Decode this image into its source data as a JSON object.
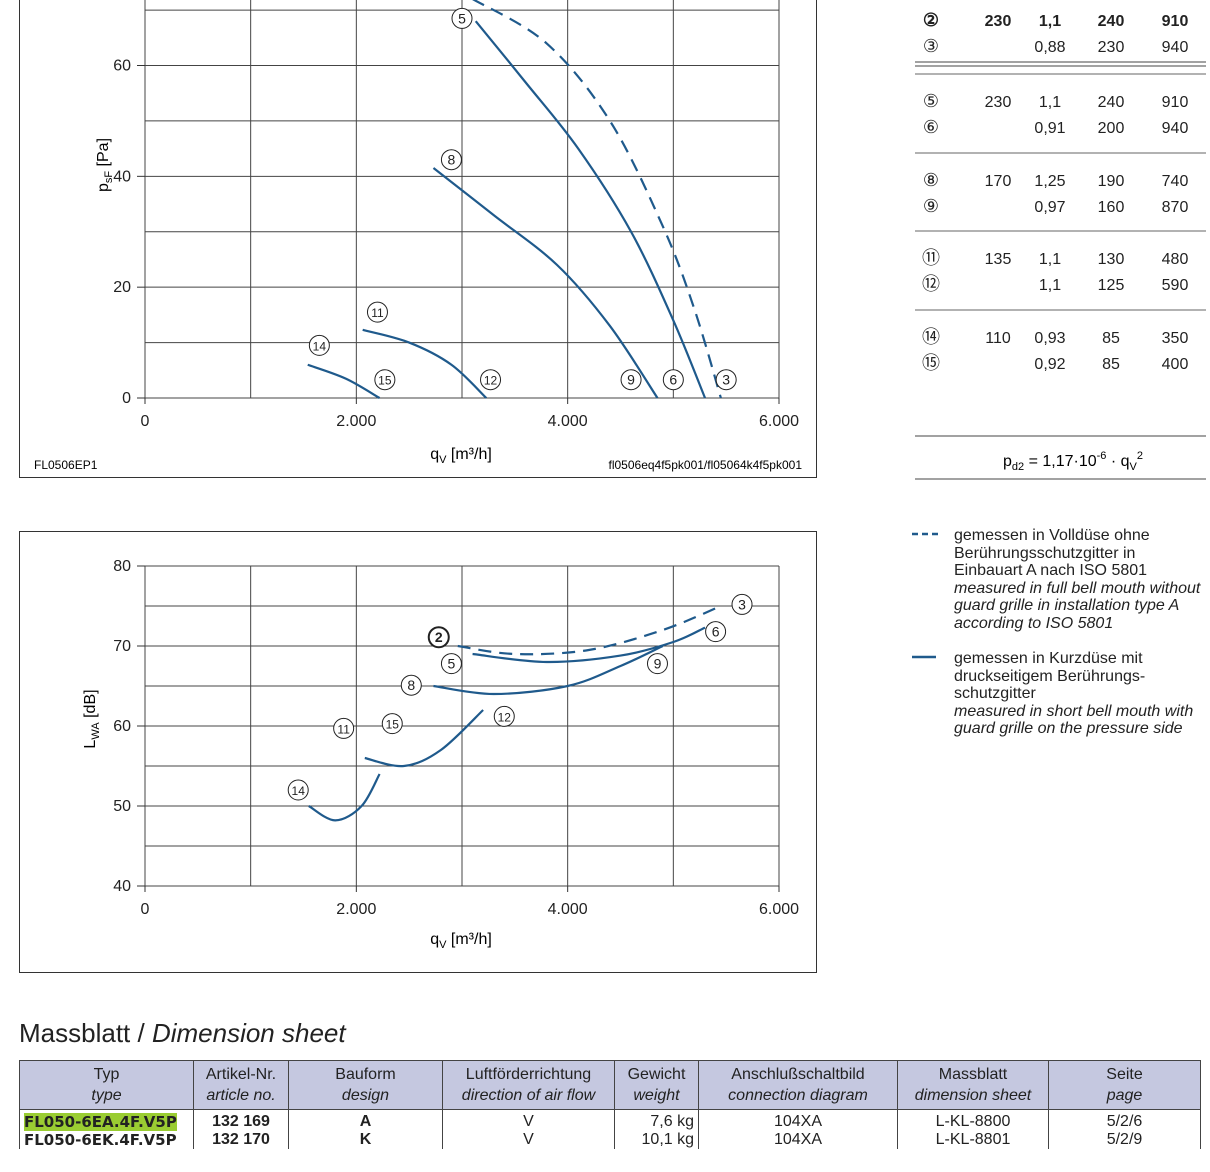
{
  "pressure_chart": {
    "ylabel_main": "p",
    "ylabel_sub": "sF",
    "ylabel_unit": " [Pa]",
    "xlabel_main": "q",
    "xlabel_sub": "V",
    "xlabel_unit": " [m³/h]",
    "code_left": "FL0506EP1",
    "code_right": "fl0506eq4f5pk001/fl05064k4f5pk001"
  },
  "sound_chart": {
    "ylabel_main": "L",
    "ylabel_sub": "WA",
    "ylabel_unit": " [dB]",
    "xlabel_main": "q",
    "xlabel_sub": "V",
    "xlabel_unit": " [m³/h]"
  },
  "chart_data": [
    {
      "type": "line",
      "xlim": [
        0,
        6000
      ],
      "ylim": [
        0,
        72
      ],
      "x_ticks": [
        0,
        2000,
        4000,
        6000
      ],
      "x_tick_labels": [
        "0",
        "2.000",
        "4.000",
        "6.000"
      ],
      "y_ticks": [
        0,
        20,
        40,
        60
      ],
      "y_tick_labels": [
        "0",
        "20",
        "40",
        "60"
      ],
      "grid": true,
      "series": [
        {
          "label": "3",
          "style": "dashed",
          "x": [
            3100,
            3800,
            4400,
            4900,
            5200,
            5450
          ],
          "y": [
            72,
            64,
            50,
            31,
            16,
            0
          ]
        },
        {
          "label": "6",
          "style": "solid",
          "x": [
            3130,
            3600,
            4100,
            4600,
            5000,
            5300
          ],
          "y": [
            68,
            57,
            45,
            30,
            14,
            0
          ]
        },
        {
          "label": "9",
          "style": "solid",
          "x": [
            2730,
            3300,
            3900,
            4400,
            4850
          ],
          "y": [
            41.5,
            33,
            24,
            13,
            0
          ]
        },
        {
          "label": "12",
          "style": "solid",
          "x": [
            2060,
            2500,
            2900,
            3230
          ],
          "y": [
            12.3,
            10,
            6,
            0
          ]
        },
        {
          "label": "15",
          "style": "solid",
          "x": [
            1540,
            1900,
            2220
          ],
          "y": [
            6,
            3.5,
            0
          ]
        }
      ],
      "annotations": [
        "5",
        "8",
        "11",
        "14",
        "15",
        "12",
        "9",
        "6",
        "3"
      ]
    },
    {
      "type": "line",
      "xlim": [
        0,
        6000
      ],
      "ylim": [
        40,
        80
      ],
      "x_ticks": [
        0,
        2000,
        4000,
        6000
      ],
      "x_tick_labels": [
        "0",
        "2.000",
        "4.000",
        "6.000"
      ],
      "y_ticks": [
        40,
        50,
        60,
        70,
        80
      ],
      "y_tick_labels": [
        "40",
        "50",
        "60",
        "70",
        "80"
      ],
      "grid": true,
      "series": [
        {
          "label": "3",
          "style": "dashed",
          "x": [
            2960,
            3500,
            4200,
            4900,
            5450
          ],
          "y": [
            70,
            69,
            69.5,
            72,
            75
          ]
        },
        {
          "label": "6",
          "style": "solid",
          "x": [
            3100,
            3800,
            4500,
            5000,
            5300
          ],
          "y": [
            69,
            68,
            68.8,
            70.5,
            72.3
          ]
        },
        {
          "label": "9",
          "style": "solid",
          "x": [
            2730,
            3300,
            4000,
            4500,
            4900
          ],
          "y": [
            65,
            64,
            65,
            67.5,
            70
          ]
        },
        {
          "label": "12",
          "style": "solid",
          "x": [
            2080,
            2450,
            2800,
            3200
          ],
          "y": [
            56,
            55,
            57,
            62
          ]
        },
        {
          "label": "15",
          "style": "solid",
          "x": [
            1550,
            1800,
            2050,
            2220
          ],
          "y": [
            50,
            48.2,
            50,
            54
          ]
        }
      ],
      "annotations": [
        "2",
        "5",
        "8",
        "11",
        "14",
        "15",
        "12",
        "9",
        "6",
        "3"
      ]
    }
  ],
  "op_table": {
    "groups": [
      {
        "rows": [
          {
            "id": "②",
            "v": "230",
            "a": "1,1",
            "w": "240",
            "rpm": "910",
            "bold": true
          },
          {
            "id": "③",
            "v": "",
            "a": "0,88",
            "w": "230",
            "rpm": "940",
            "bold": false
          }
        ]
      },
      {
        "rows": [
          {
            "id": "⑤",
            "v": "230",
            "a": "1,1",
            "w": "240",
            "rpm": "910",
            "bold": false
          },
          {
            "id": "⑥",
            "v": "",
            "a": "0,91",
            "w": "200",
            "rpm": "940",
            "bold": false
          }
        ]
      },
      {
        "rows": [
          {
            "id": "⑧",
            "v": "170",
            "a": "1,25",
            "w": "190",
            "rpm": "740",
            "bold": false
          },
          {
            "id": "⑨",
            "v": "",
            "a": "0,97",
            "w": "160",
            "rpm": "870",
            "bold": false
          }
        ]
      },
      {
        "rows": [
          {
            "id": "⑪",
            "v": "135",
            "a": "1,1",
            "w": "130",
            "rpm": "480",
            "bold": false
          },
          {
            "id": "⑫",
            "v": "",
            "a": "1,1",
            "w": "125",
            "rpm": "590",
            "bold": false
          }
        ]
      },
      {
        "rows": [
          {
            "id": "⑭",
            "v": "110",
            "a": "0,93",
            "w": "85",
            "rpm": "350",
            "bold": false
          },
          {
            "id": "⑮",
            "v": "",
            "a": "0,92",
            "w": "85",
            "rpm": "400",
            "bold": false
          }
        ]
      }
    ],
    "formula": {
      "p": "p",
      "p_sub": "d2",
      "mid": " = 1,17·10",
      "exp": "-6",
      "dot": " · q",
      "q_sub": "V",
      "q_sup": "2"
    }
  },
  "legend": {
    "dashed": {
      "de": "gemessen in Volldüse ohne Berührungsschutzgitter in Einbauart A nach ISO 5801",
      "en": "measured in full bell mouth without guard grille in installation type A according to ISO 5801"
    },
    "solid": {
      "de": "gemessen in Kurzdüse mit druckseitigem Berührungs- schutzgitter",
      "en": "measured in short bell mouth with guard grille on the pressure side"
    }
  },
  "dimension_sheet": {
    "title_de": "Massblatt / ",
    "title_en": "Dimension sheet",
    "headers": [
      {
        "de": "Typ",
        "en": "type"
      },
      {
        "de": "Artikel-Nr.",
        "en": "article no."
      },
      {
        "de": "Bauform",
        "en": "design"
      },
      {
        "de": "Luftförderrichtung",
        "en": "direction of air flow"
      },
      {
        "de": "Gewicht",
        "en": "weight"
      },
      {
        "de": "Anschlußschaltbild",
        "en": "connection diagram"
      },
      {
        "de": "Massblatt",
        "en": "dimension sheet"
      },
      {
        "de": "Seite",
        "en": "page"
      }
    ],
    "rows": [
      {
        "type": "FL050-6EA.4F.V5P",
        "article": "132 169",
        "design": "A",
        "flow": "V",
        "weight": "7,6 kg",
        "diagram": "104XA",
        "sheet": "L-KL-8800",
        "page": "5/2/6"
      },
      {
        "type": "FL050-6EK.4F.V5P",
        "article": "132 170",
        "design": "K",
        "flow": "V",
        "weight": "10,1 kg",
        "diagram": "104XA",
        "sheet": "L-KL-8801",
        "page": "5/2/9"
      }
    ]
  },
  "colors": {
    "curve": "#1f5a8c",
    "grid": "#444444",
    "header_bg": "#c5c8e0",
    "highlight": "#9acd32"
  }
}
